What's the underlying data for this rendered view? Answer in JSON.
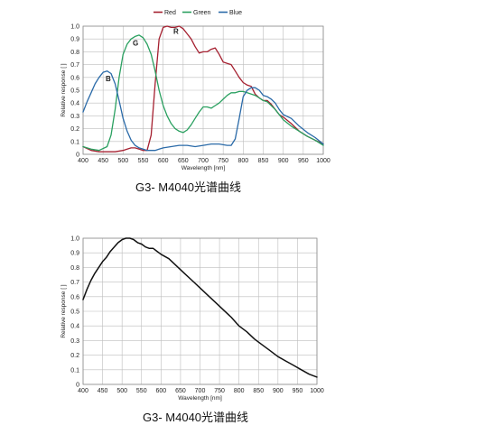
{
  "chart_data": [
    {
      "type": "line",
      "caption": "G3- M4040光谱曲线",
      "xlabel": "Wavelength [nm]",
      "ylabel": "Relative response [ ]",
      "xlim": [
        400,
        1000
      ],
      "ylim": [
        0,
        1.0
      ],
      "x_ticks": [
        400,
        450,
        500,
        550,
        600,
        650,
        700,
        750,
        800,
        850,
        900,
        950,
        1000
      ],
      "y_ticks": [
        0,
        0.1,
        0.2,
        0.3,
        0.4,
        0.5,
        0.6,
        0.7,
        0.8,
        0.9,
        1.0
      ],
      "grid": true,
      "legend_position": "top-center",
      "series": [
        {
          "name": "Red",
          "color": "#a52030",
          "x": [
            400,
            420,
            440,
            460,
            480,
            500,
            510,
            520,
            530,
            540,
            550,
            560,
            570,
            580,
            590,
            600,
            610,
            620,
            630,
            640,
            650,
            660,
            670,
            680,
            690,
            700,
            710,
            720,
            730,
            740,
            750,
            760,
            770,
            780,
            790,
            800,
            810,
            820,
            830,
            840,
            850,
            860,
            870,
            880,
            890,
            900,
            920,
            940,
            960,
            980,
            1000
          ],
          "y": [
            0.06,
            0.03,
            0.02,
            0.02,
            0.02,
            0.03,
            0.04,
            0.05,
            0.05,
            0.04,
            0.03,
            0.03,
            0.15,
            0.55,
            0.9,
            0.99,
            1.0,
            0.99,
            0.99,
            1.0,
            0.98,
            0.94,
            0.9,
            0.84,
            0.79,
            0.8,
            0.8,
            0.82,
            0.83,
            0.78,
            0.72,
            0.71,
            0.7,
            0.65,
            0.6,
            0.56,
            0.54,
            0.53,
            0.47,
            0.44,
            0.42,
            0.42,
            0.39,
            0.35,
            0.31,
            0.29,
            0.24,
            0.18,
            0.14,
            0.11,
            0.08
          ]
        },
        {
          "name": "Green",
          "color": "#2aa060",
          "x": [
            400,
            420,
            440,
            460,
            470,
            480,
            490,
            500,
            510,
            520,
            530,
            540,
            550,
            560,
            570,
            580,
            590,
            600,
            610,
            620,
            630,
            640,
            650,
            660,
            670,
            680,
            690,
            700,
            710,
            720,
            730,
            740,
            750,
            760,
            770,
            780,
            790,
            800,
            810,
            820,
            830,
            840,
            850,
            860,
            870,
            880,
            890,
            900,
            920,
            940,
            960,
            980,
            1000
          ],
          "y": [
            0.06,
            0.04,
            0.03,
            0.06,
            0.15,
            0.35,
            0.6,
            0.78,
            0.86,
            0.9,
            0.92,
            0.93,
            0.91,
            0.86,
            0.78,
            0.65,
            0.5,
            0.38,
            0.3,
            0.24,
            0.2,
            0.18,
            0.17,
            0.19,
            0.23,
            0.28,
            0.33,
            0.37,
            0.37,
            0.36,
            0.38,
            0.4,
            0.43,
            0.46,
            0.48,
            0.48,
            0.49,
            0.49,
            0.48,
            0.47,
            0.46,
            0.44,
            0.42,
            0.41,
            0.38,
            0.35,
            0.31,
            0.27,
            0.22,
            0.18,
            0.14,
            0.11,
            0.07
          ]
        },
        {
          "name": "Blue",
          "color": "#2a6aa8",
          "x": [
            400,
            410,
            420,
            430,
            440,
            450,
            460,
            470,
            480,
            490,
            500,
            510,
            520,
            530,
            540,
            550,
            560,
            570,
            580,
            590,
            600,
            620,
            640,
            660,
            680,
            700,
            720,
            740,
            760,
            770,
            780,
            790,
            800,
            810,
            820,
            830,
            840,
            850,
            860,
            870,
            880,
            890,
            900,
            920,
            940,
            960,
            980,
            1000
          ],
          "y": [
            0.33,
            0.41,
            0.48,
            0.55,
            0.6,
            0.64,
            0.65,
            0.63,
            0.55,
            0.42,
            0.28,
            0.18,
            0.11,
            0.07,
            0.05,
            0.04,
            0.03,
            0.03,
            0.03,
            0.04,
            0.05,
            0.06,
            0.07,
            0.07,
            0.06,
            0.07,
            0.08,
            0.08,
            0.07,
            0.07,
            0.12,
            0.28,
            0.45,
            0.5,
            0.52,
            0.52,
            0.5,
            0.46,
            0.45,
            0.43,
            0.4,
            0.35,
            0.31,
            0.28,
            0.22,
            0.17,
            0.13,
            0.08
          ]
        }
      ],
      "annotations": [
        {
          "text": "R",
          "x": 632,
          "y": 0.94
        },
        {
          "text": "G",
          "x": 531,
          "y": 0.85
        },
        {
          "text": "B",
          "x": 463,
          "y": 0.57
        }
      ]
    },
    {
      "type": "line",
      "caption": "G3- M4040光谱曲线",
      "xlabel": "Wavelength [nm]",
      "ylabel": "Relative response [ ]",
      "xlim": [
        400,
        1000
      ],
      "ylim": [
        0,
        1.0
      ],
      "x_ticks": [
        400,
        450,
        500,
        550,
        600,
        650,
        700,
        750,
        800,
        850,
        900,
        950,
        1000
      ],
      "y_ticks": [
        0,
        0.1,
        0.2,
        0.3,
        0.4,
        0.5,
        0.6,
        0.7,
        0.8,
        0.9,
        1.0
      ],
      "grid": true,
      "series": [
        {
          "color": "#111111",
          "x": [
            400,
            410,
            420,
            430,
            440,
            450,
            460,
            470,
            480,
            490,
            500,
            510,
            520,
            530,
            540,
            550,
            560,
            570,
            580,
            590,
            600,
            620,
            640,
            660,
            680,
            700,
            720,
            740,
            760,
            780,
            800,
            820,
            840,
            860,
            880,
            900,
            920,
            940,
            960,
            980,
            1000
          ],
          "y": [
            0.58,
            0.65,
            0.71,
            0.76,
            0.8,
            0.84,
            0.87,
            0.91,
            0.94,
            0.97,
            0.99,
            1.0,
            1.0,
            0.99,
            0.97,
            0.96,
            0.94,
            0.93,
            0.93,
            0.91,
            0.89,
            0.86,
            0.81,
            0.76,
            0.71,
            0.66,
            0.61,
            0.56,
            0.51,
            0.46,
            0.4,
            0.36,
            0.31,
            0.27,
            0.23,
            0.19,
            0.16,
            0.13,
            0.1,
            0.07,
            0.05
          ]
        }
      ]
    }
  ]
}
